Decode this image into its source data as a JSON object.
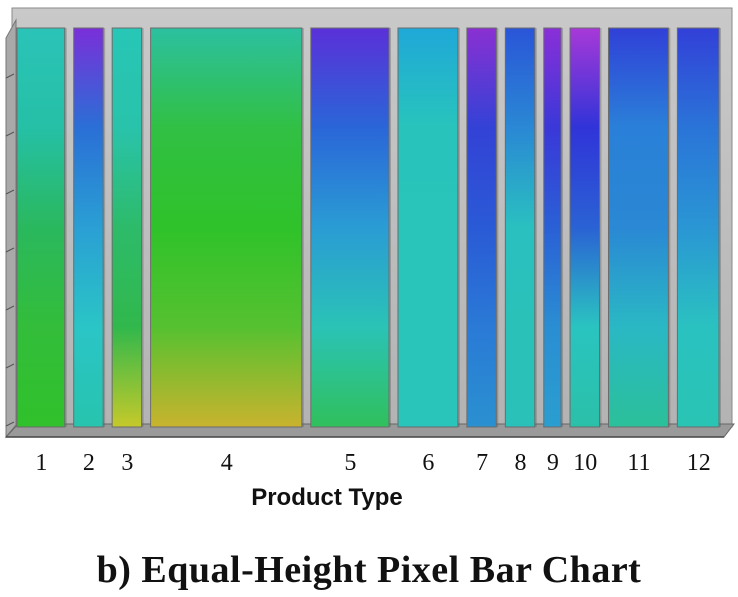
{
  "caption": "b) Equal-Height Pixel Bar Chart",
  "chart_data": {
    "type": "bar",
    "subtype": "equal-height pixel bar chart",
    "title": "",
    "xlabel": "Product Type",
    "ylabel": "",
    "categories": [
      "1",
      "2",
      "3",
      "4",
      "5",
      "6",
      "7",
      "8",
      "9",
      "10",
      "11",
      "12"
    ],
    "relative_width": [
      8,
      5,
      5,
      25,
      13,
      10,
      5,
      5,
      3,
      5,
      10,
      7
    ],
    "ylim": [
      0,
      1
    ],
    "grid": false,
    "legend": "none",
    "pixel_color_bands": [
      [
        "#2bc3b8",
        "#25c0a6",
        "#2ab85e",
        "#33bd3a",
        "#30c12b"
      ],
      [
        "#7a2fd9",
        "#2a6fd6",
        "#2a9fd4",
        "#2ac5c6",
        "#27c4ae"
      ],
      [
        "#27c6b6",
        "#29c3ab",
        "#2dbb6a",
        "#31b84c",
        "#c5c92a"
      ],
      [
        "#2cc0a0",
        "#31c044",
        "#2fc22a",
        "#56c130",
        "#c9b32e"
      ],
      [
        "#5a30d8",
        "#2a66d8",
        "#2a9cd4",
        "#2ac3b6",
        "#30c05c"
      ],
      [
        "#1fa8d8",
        "#28c4bc",
        "#29c5ba",
        "#29c5ba",
        "#29c5ba"
      ],
      [
        "#8a30d2",
        "#3342d6",
        "#2a5ad6",
        "#2a7ad6",
        "#2a90d0"
      ],
      [
        "#2a55d8",
        "#2a88d4",
        "#2ac0c0",
        "#2ac1b8",
        "#2ac1b8"
      ],
      [
        "#8a2fd8",
        "#3a38d8",
        "#2a60d6",
        "#2a8ed2",
        "#2a9ed0"
      ],
      [
        "#a838d8",
        "#3034d8",
        "#2a62d4",
        "#2ac4c0",
        "#2ac0a8"
      ],
      [
        "#3040d8",
        "#2a80d8",
        "#2a88d4",
        "#2ab8c4",
        "#2bc09a"
      ],
      [
        "#3240d8",
        "#2a74d8",
        "#2a96d4",
        "#2ac2c0",
        "#2ac4b4"
      ]
    ]
  }
}
